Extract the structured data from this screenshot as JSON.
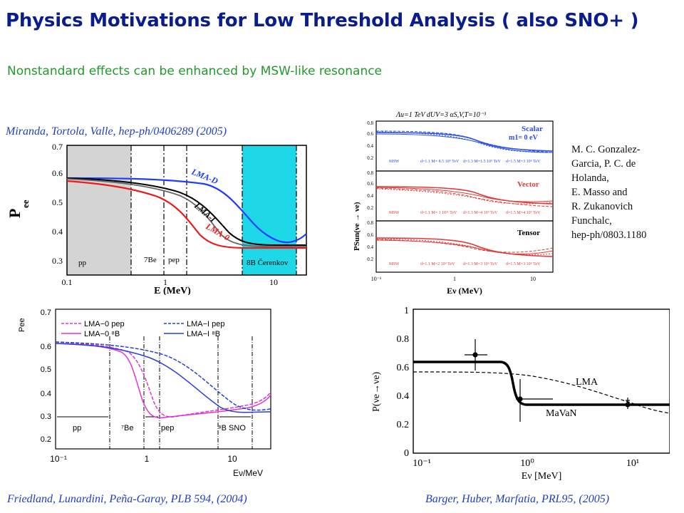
{
  "title": "Physics Motivations for Low Threshold Analysis ( also SNO+ )",
  "subtitle": "Nonstandard effects can be enhanced by MSW-like resonance",
  "citations": {
    "miranda": "Miranda, Tortola, Valle, hep-ph/0406289 (2005)",
    "friedland": "Friedland, Lunardini, Peña-Garay, PLB 594, (2004)",
    "barger": "Barger, Huber, Marfatia, PRL95, (2005)",
    "gonzalez": [
      "M. C. Gonzalez-",
      "Garcia, P. C. de",
      "Holanda,",
      "E. Masso and",
      "R. Zukanovich",
      "Funchalc,",
      "hep-ph/0803.1180"
    ]
  },
  "plot1": {
    "ylabel": "P",
    "ylabel_sub": "ee",
    "xlabel": "E (MeV)",
    "xticks": [
      "0.1",
      "1",
      "10"
    ],
    "yticks": [
      "0.3",
      "0.4",
      "0.5",
      "0.6",
      "0.7"
    ],
    "regions": [
      "pp",
      "7Be",
      "pep",
      "8B Čerenkov"
    ],
    "curves": [
      "LMA-D",
      "LMA-I",
      "LMA-0"
    ],
    "colors": {
      "shade": "#d4d4d4",
      "cyan": "#1ed8e8",
      "blue": "#1e3cff",
      "red": "#ee1a1a",
      "black": "#000000"
    }
  },
  "plot2": {
    "header": "Λu=1 TeV  dUV=3  αS,V,T=10⁻³",
    "ylabel": "PSun(νe → νe)",
    "xlabel": "Eν (MeV)",
    "xticks": [
      "10⁻¹",
      "1",
      "10"
    ],
    "panels": [
      {
        "label": "Scalar",
        "label2": "m1= 0 eV",
        "legend": [
          "MSW",
          "d=1.1 M= 8.5 10⁵ TeV",
          "d=1.3 M=1.5 10⁵ TeV",
          "d=1.5 M=3 10⁵ TeV"
        ],
        "yticks": [
          "0.2",
          "0.4",
          "0.6",
          "0.8"
        ]
      },
      {
        "label": "Vector",
        "label2": "",
        "legend": [
          "MSW",
          "d=1.1 M= 1 10¹¹ TeV",
          "d=1.3 M=4 10⁹ TeV",
          "d=1.5 M=4 10⁷ TeV"
        ],
        "yticks": [
          "0.2",
          "0.4",
          "0.6",
          "0.8"
        ]
      },
      {
        "label": "Tensor",
        "label2": "",
        "legend": [
          "MSW",
          "d=1.1 M=2 10⁹ TeV",
          "d=1.3 M=3 10⁶ TeV",
          "d=1.5 M=3 10⁵ TeV"
        ],
        "yticks": [
          "0.2",
          "0.4",
          "0.6",
          "0.8"
        ]
      }
    ]
  },
  "plot3": {
    "ylabel": "Pee",
    "xlabel": "Eν/MeV",
    "xticks": [
      "10⁻¹",
      "1",
      "10"
    ],
    "yticks": [
      "0.2",
      "0.3",
      "0.4",
      "0.5",
      "0.6",
      "0.7"
    ],
    "legend": [
      "LMA−0 pep",
      "LMA−0 ⁸B",
      "LMA−I pep",
      "LMA−I ⁸B"
    ],
    "regions": [
      "pp",
      "⁷Be",
      "pep",
      "⁸B SNO"
    ]
  },
  "plot4": {
    "ylabel": "P(νe→νe)",
    "xlabel": "Eν [MeV]",
    "xticks": [
      "10⁻¹",
      "10⁰",
      "10¹"
    ],
    "yticks": [
      "0",
      "0.2",
      "0.4",
      "0.6",
      "0.8",
      "1"
    ],
    "curves": [
      "LMA",
      "MaVaN"
    ]
  }
}
